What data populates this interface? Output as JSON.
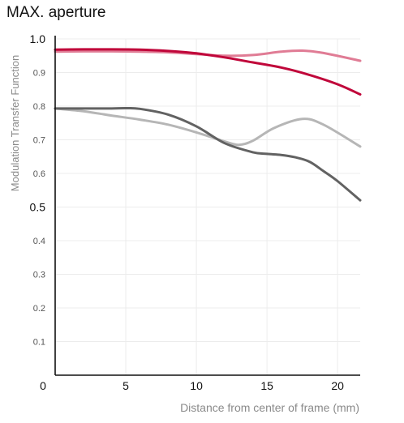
{
  "chart_data": {
    "type": "line",
    "title": "MAX. aperture",
    "xlabel": "Distance from center of frame (mm)",
    "ylabel": "Modulation Transfer Function",
    "xlim": [
      0,
      21.6
    ],
    "ylim": [
      0,
      1.0
    ],
    "x_ticks": [
      {
        "value": 0,
        "label": "0"
      },
      {
        "value": 5,
        "label": "5"
      },
      {
        "value": 10,
        "label": "10"
      },
      {
        "value": 15,
        "label": "15"
      },
      {
        "value": 20,
        "label": "20"
      }
    ],
    "y_ticks": [
      {
        "value": 1.0,
        "label": "1.0",
        "major": true
      },
      {
        "value": 0.9,
        "label": "0.9",
        "major": false
      },
      {
        "value": 0.8,
        "label": "0.8",
        "major": false
      },
      {
        "value": 0.7,
        "label": "0.7",
        "major": false
      },
      {
        "value": 0.6,
        "label": "0.6",
        "major": false
      },
      {
        "value": 0.5,
        "label": "0.5",
        "major": true
      },
      {
        "value": 0.4,
        "label": "0.4",
        "major": false
      },
      {
        "value": 0.3,
        "label": "0.3",
        "major": false
      },
      {
        "value": 0.2,
        "label": "0.2",
        "major": false
      },
      {
        "value": 0.1,
        "label": "0.1",
        "major": false
      }
    ],
    "x_gridlines": [
      5,
      10,
      15,
      20
    ],
    "grid": true,
    "series": [
      {
        "color": "#e07c95",
        "x": [
          0,
          2,
          4,
          6,
          8,
          10,
          12,
          14,
          16,
          17.5,
          19,
          21.6
        ],
        "y": [
          0.962,
          0.963,
          0.963,
          0.962,
          0.96,
          0.955,
          0.95,
          0.952,
          0.962,
          0.965,
          0.958,
          0.935
        ]
      },
      {
        "color": "#c0063a",
        "x": [
          0,
          2,
          4,
          6,
          8,
          10,
          12,
          14,
          16,
          18,
          20,
          21.6
        ],
        "y": [
          0.968,
          0.969,
          0.969,
          0.968,
          0.964,
          0.957,
          0.945,
          0.93,
          0.915,
          0.893,
          0.865,
          0.835
        ]
      },
      {
        "color": "#b6b6b6",
        "x": [
          0,
          2,
          4,
          6,
          8,
          10,
          12,
          13,
          14,
          15.5,
          17.5,
          19,
          21.6
        ],
        "y": [
          0.793,
          0.785,
          0.772,
          0.76,
          0.745,
          0.722,
          0.695,
          0.685,
          0.697,
          0.735,
          0.762,
          0.745,
          0.68
        ]
      },
      {
        "color": "#626262",
        "x": [
          0,
          2,
          4,
          5,
          6,
          8,
          10,
          12,
          14,
          15,
          16,
          17,
          18,
          19,
          20,
          21.6
        ],
        "y": [
          0.793,
          0.793,
          0.793,
          0.794,
          0.792,
          0.775,
          0.74,
          0.69,
          0.663,
          0.658,
          0.655,
          0.648,
          0.635,
          0.607,
          0.577,
          0.52
        ]
      }
    ]
  }
}
